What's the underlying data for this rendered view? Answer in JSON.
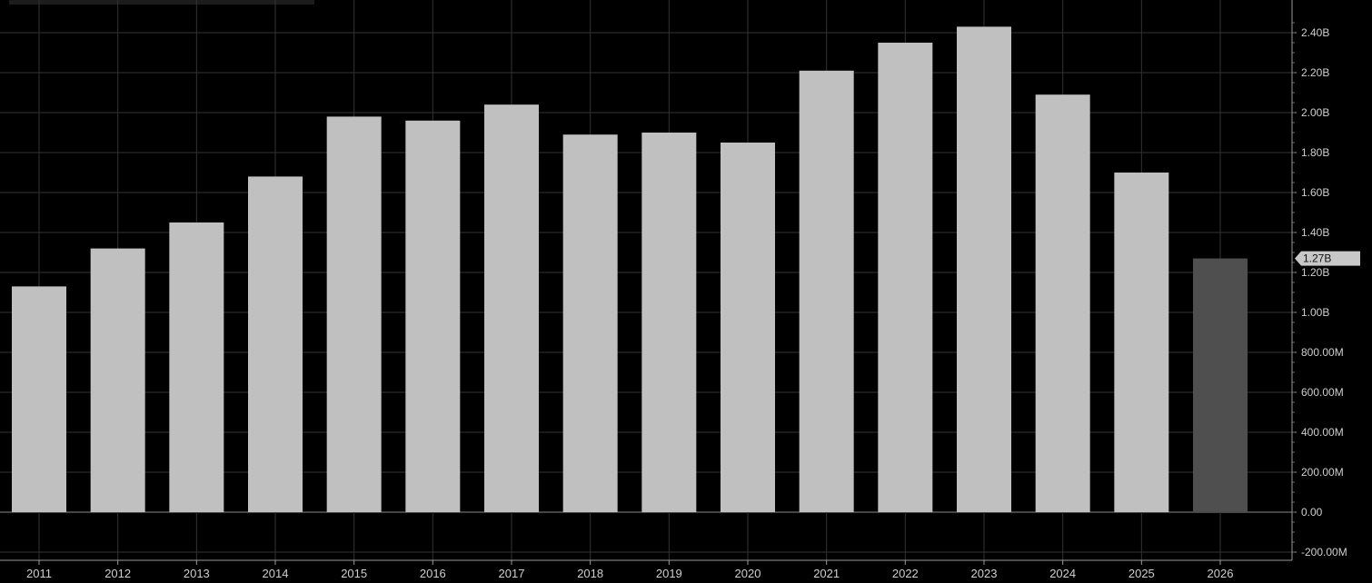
{
  "chart_data": {
    "type": "bar",
    "categories": [
      "2011",
      "2012",
      "2013",
      "2014",
      "2015",
      "2016",
      "2017",
      "2018",
      "2019",
      "2020",
      "2021",
      "2022",
      "2023",
      "2024",
      "2025",
      "2026"
    ],
    "values": [
      1.13,
      1.32,
      1.45,
      1.68,
      1.98,
      1.96,
      2.04,
      1.89,
      1.9,
      1.85,
      2.21,
      2.35,
      2.43,
      2.09,
      1.7,
      1.27
    ],
    "estimate_flags": [
      false,
      false,
      false,
      false,
      false,
      false,
      false,
      false,
      false,
      false,
      false,
      false,
      false,
      false,
      false,
      true
    ],
    "value_unit": "B",
    "ylim": [
      -0.2,
      2.5
    ],
    "yticks": [
      {
        "v": -0.2,
        "label": "-200.00M"
      },
      {
        "v": 0.0,
        "label": "0.00"
      },
      {
        "v": 0.2,
        "label": "200.00M"
      },
      {
        "v": 0.4,
        "label": "400.00M"
      },
      {
        "v": 0.6,
        "label": "600.00M"
      },
      {
        "v": 0.8,
        "label": "800.00M"
      },
      {
        "v": 1.0,
        "label": "1.00B"
      },
      {
        "v": 1.2,
        "label": "1.20B"
      },
      {
        "v": 1.4,
        "label": "1.40B"
      },
      {
        "v": 1.6,
        "label": "1.60B"
      },
      {
        "v": 1.8,
        "label": "1.80B"
      },
      {
        "v": 2.0,
        "label": "2.00B"
      },
      {
        "v": 2.2,
        "label": "2.20B"
      },
      {
        "v": 2.4,
        "label": "2.40B"
      }
    ],
    "last_value_marker": {
      "value": 1.27,
      "label": "1.27B"
    },
    "grid": true,
    "legend": "none",
    "title": "",
    "xlabel": "",
    "ylabel": ""
  },
  "colors": {
    "background": "#000000",
    "bar": "#c0c0c0",
    "bar_estimate": "#4f4f4f",
    "grid": "#333333",
    "axis": "#9a9a9a",
    "text": "#cfcfcf",
    "marker_bg": "#c8c8c8",
    "marker_text": "#111111"
  }
}
